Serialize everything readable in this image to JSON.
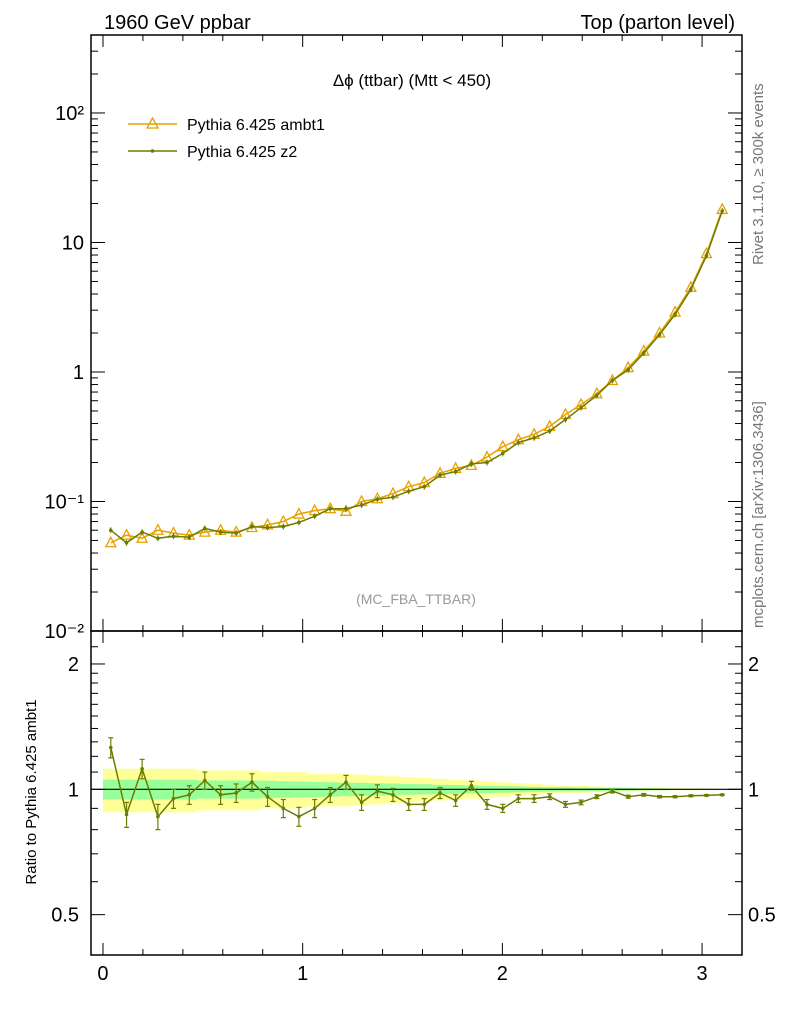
{
  "header": {
    "left": "1960 GeV ppbar",
    "right": "Top (parton level)"
  },
  "side": {
    "rivet": "Rivet 3.1.10, ≥ 300k events",
    "mcplots": "mcplots.cern.ch [arXiv:1306.3436]"
  },
  "colors": {
    "ambt1": "#e8a000",
    "z2": "#6b7d00",
    "band_yellow": "#ffff99",
    "band_green": "#99ff99"
  },
  "chart_data": [
    {
      "type": "line",
      "title": "Δϕ (ttbar) (Mtt < 450)",
      "analysis": "(MC_FBA_TTBAR)",
      "yscale": "log",
      "ylim": [
        0.01,
        400
      ],
      "xlim": [
        -0.06,
        3.2
      ],
      "ytick_labels": [
        "10⁻²",
        "10⁻¹",
        "1",
        "10",
        "10²"
      ],
      "legend": "top-left",
      "x": [
        0.039,
        0.118,
        0.196,
        0.275,
        0.353,
        0.432,
        0.51,
        0.589,
        0.667,
        0.746,
        0.824,
        0.903,
        0.981,
        1.06,
        1.138,
        1.217,
        1.295,
        1.374,
        1.452,
        1.531,
        1.609,
        1.688,
        1.766,
        1.845,
        1.923,
        2.002,
        2.08,
        2.159,
        2.237,
        2.316,
        2.394,
        2.473,
        2.551,
        2.63,
        2.708,
        2.787,
        2.865,
        2.944,
        3.022,
        3.101
      ],
      "series": [
        {
          "name": "Pythia 6.425 ambt1",
          "marker": "triangle",
          "values": [
            0.048,
            0.055,
            0.052,
            0.06,
            0.057,
            0.055,
            0.058,
            0.06,
            0.058,
            0.063,
            0.066,
            0.07,
            0.08,
            0.085,
            0.088,
            0.084,
            0.1,
            0.105,
            0.115,
            0.13,
            0.14,
            0.165,
            0.18,
            0.19,
            0.22,
            0.265,
            0.3,
            0.33,
            0.38,
            0.47,
            0.56,
            0.68,
            0.86,
            1.08,
            1.45,
            2.0,
            2.9,
            4.5,
            8.2,
            18.0
          ]
        },
        {
          "name": "Pythia 6.425 z2",
          "marker": "dot",
          "values": [
            0.06,
            0.048,
            0.058,
            0.052,
            0.054,
            0.053,
            0.062,
            0.058,
            0.057,
            0.064,
            0.063,
            0.064,
            0.069,
            0.077,
            0.088,
            0.088,
            0.094,
            0.104,
            0.108,
            0.12,
            0.13,
            0.16,
            0.17,
            0.195,
            0.2,
            0.235,
            0.285,
            0.31,
            0.35,
            0.43,
            0.53,
            0.66,
            0.86,
            1.04,
            1.4,
            1.94,
            2.78,
            4.35,
            7.92,
            17.5
          ]
        }
      ]
    },
    {
      "type": "line",
      "ylabel": "Ratio to Pythia 6.425 ambt1",
      "ylim": [
        0.4,
        2.4
      ],
      "yscale": "log",
      "ytick_labels": [
        "0.5",
        "1",
        "2"
      ],
      "xtick_labels": [
        "0",
        "1",
        "2",
        "3"
      ],
      "x": [
        0.039,
        0.118,
        0.196,
        0.275,
        0.353,
        0.432,
        0.51,
        0.589,
        0.667,
        0.746,
        0.824,
        0.903,
        0.981,
        1.06,
        1.138,
        1.217,
        1.295,
        1.374,
        1.452,
        1.531,
        1.609,
        1.688,
        1.766,
        1.845,
        1.923,
        2.002,
        2.08,
        2.159,
        2.237,
        2.316,
        2.394,
        2.473,
        2.551,
        2.63,
        2.708,
        2.787,
        2.865,
        2.944,
        3.022,
        3.101
      ],
      "series": [
        {
          "name": "Pythia 6.425 z2",
          "values": [
            1.26,
            0.87,
            1.12,
            0.86,
            0.95,
            0.97,
            1.05,
            0.97,
            0.98,
            1.04,
            0.96,
            0.9,
            0.86,
            0.9,
            0.97,
            1.04,
            0.93,
            0.99,
            0.97,
            0.92,
            0.92,
            0.98,
            0.94,
            1.02,
            0.92,
            0.9,
            0.95,
            0.95,
            0.96,
            0.92,
            0.93,
            0.96,
            0.99,
            0.96,
            0.97,
            0.96,
            0.96,
            0.965,
            0.967,
            0.97
          ]
        }
      ],
      "band_yellow_halfwidth": [
        0.12,
        0.12,
        0.12,
        0.12,
        0.12,
        0.12,
        0.11,
        0.11,
        0.11,
        0.11,
        0.1,
        0.1,
        0.1,
        0.09,
        0.09,
        0.09,
        0.085,
        0.08,
        0.075,
        0.07,
        0.065,
        0.06,
        0.055,
        0.05,
        0.045,
        0.04,
        0.035,
        0.03,
        0.026,
        0.022,
        0.019,
        0.016,
        0.013,
        0.011,
        0.009,
        0.007,
        0.006,
        0.005,
        0.004,
        0.003
      ],
      "band_green_halfwidth": [
        0.055,
        0.055,
        0.055,
        0.055,
        0.055,
        0.055,
        0.05,
        0.05,
        0.05,
        0.05,
        0.048,
        0.046,
        0.044,
        0.042,
        0.04,
        0.038,
        0.036,
        0.034,
        0.032,
        0.03,
        0.028,
        0.026,
        0.024,
        0.022,
        0.02,
        0.018,
        0.016,
        0.014,
        0.012,
        0.011,
        0.01,
        0.009,
        0.008,
        0.007,
        0.006,
        0.005,
        0.004,
        0.003,
        0.003,
        0.002
      ],
      "error_halfwidth": [
        0.07,
        0.06,
        0.06,
        0.06,
        0.05,
        0.05,
        0.05,
        0.05,
        0.05,
        0.05,
        0.05,
        0.045,
        0.045,
        0.045,
        0.04,
        0.04,
        0.04,
        0.035,
        0.035,
        0.03,
        0.03,
        0.03,
        0.03,
        0.025,
        0.025,
        0.02,
        0.02,
        0.02,
        0.015,
        0.015,
        0.012,
        0.01,
        0.01,
        0.008,
        0.007,
        0.006,
        0.005,
        0.005,
        0.004,
        0.004
      ]
    }
  ]
}
